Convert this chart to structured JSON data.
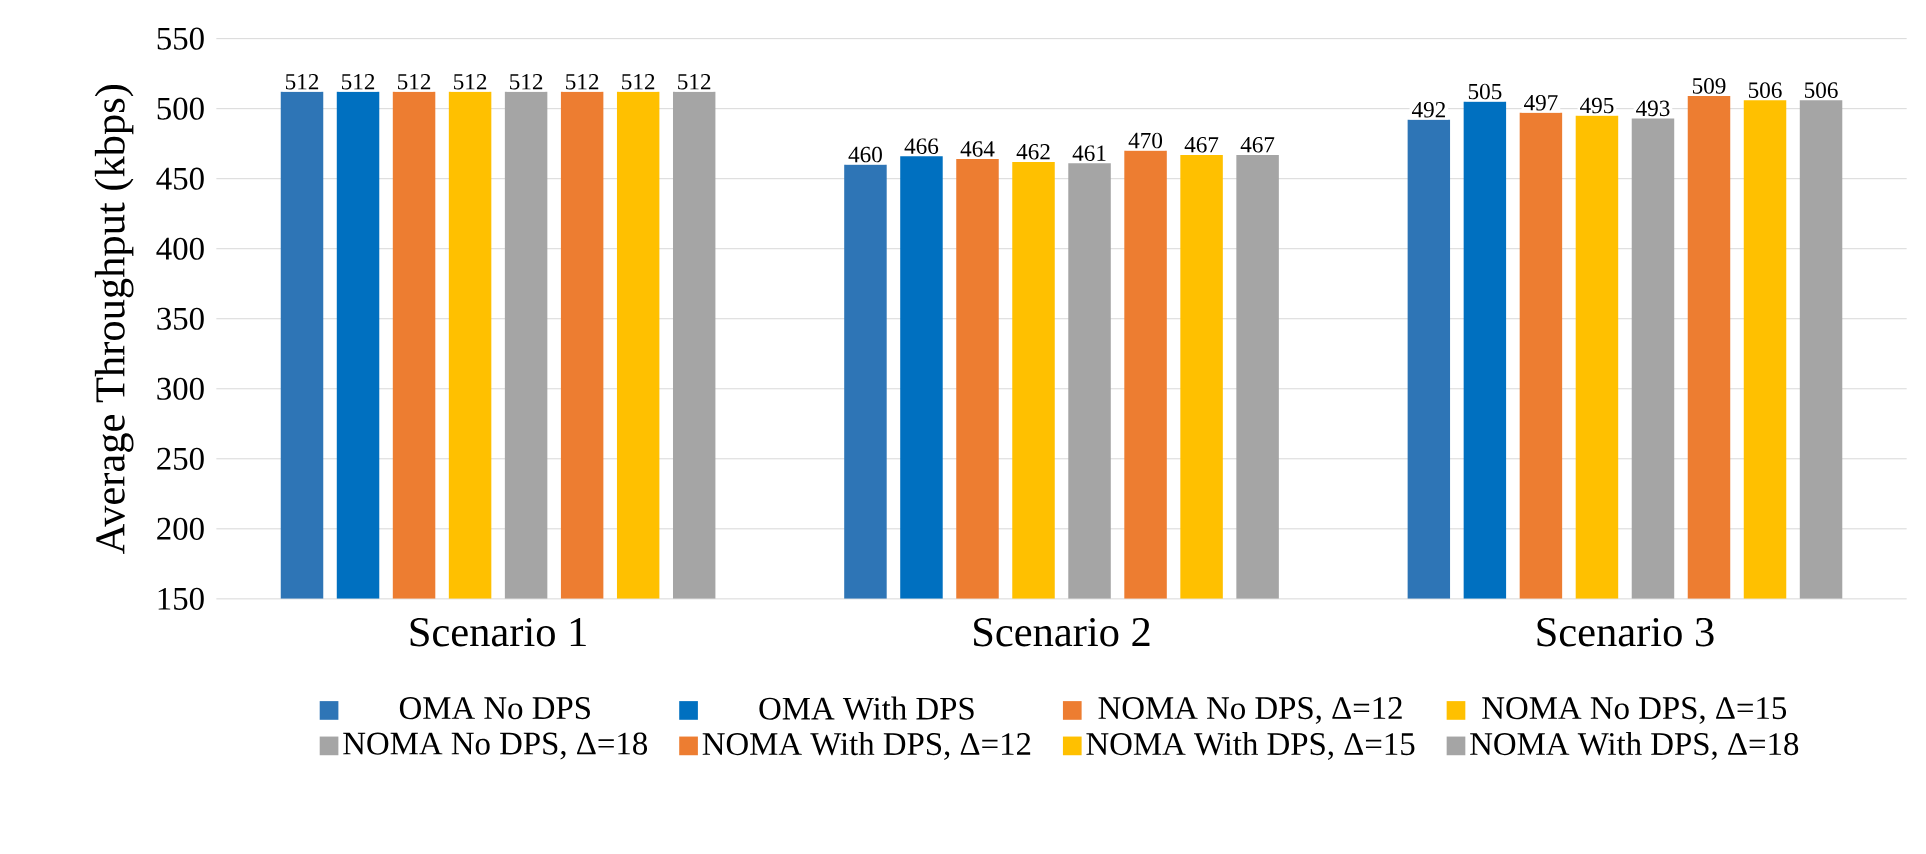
{
  "chart_data": {
    "type": "bar",
    "ylabel": "Average Throughput (kbps)",
    "categories": [
      "Scenario 1",
      "Scenario 2",
      "Scenario 3"
    ],
    "series": [
      {
        "name": "OMA No DPS",
        "color": "#2e75b6",
        "values": [
          512,
          460,
          492
        ]
      },
      {
        "name": "OMA With DPS",
        "color": "#0070c0",
        "values": [
          512,
          466,
          505
        ]
      },
      {
        "name": "NOMA No DPS, Δ=12",
        "color": "#ed7d31",
        "values": [
          512,
          464,
          497
        ]
      },
      {
        "name": "NOMA No DPS, Δ=15",
        "color": "#ffc000",
        "values": [
          512,
          462,
          495
        ]
      },
      {
        "name": "NOMA No DPS, Δ=18",
        "color": "#a5a5a5",
        "values": [
          512,
          461,
          493
        ]
      },
      {
        "name": "NOMA With DPS, Δ=12",
        "color": "#ed7d31",
        "values": [
          512,
          470,
          509
        ]
      },
      {
        "name": "NOMA With DPS, Δ=15",
        "color": "#ffc000",
        "values": [
          512,
          467,
          506
        ]
      },
      {
        "name": "NOMA With DPS, Δ=18",
        "color": "#a5a5a5",
        "values": [
          512,
          467,
          506
        ]
      }
    ],
    "ylim": [
      150,
      550
    ],
    "yticks": [
      150,
      200,
      250,
      300,
      350,
      400,
      450,
      500,
      550
    ],
    "grid": "y",
    "legend": "bottom",
    "data_labels": true
  }
}
